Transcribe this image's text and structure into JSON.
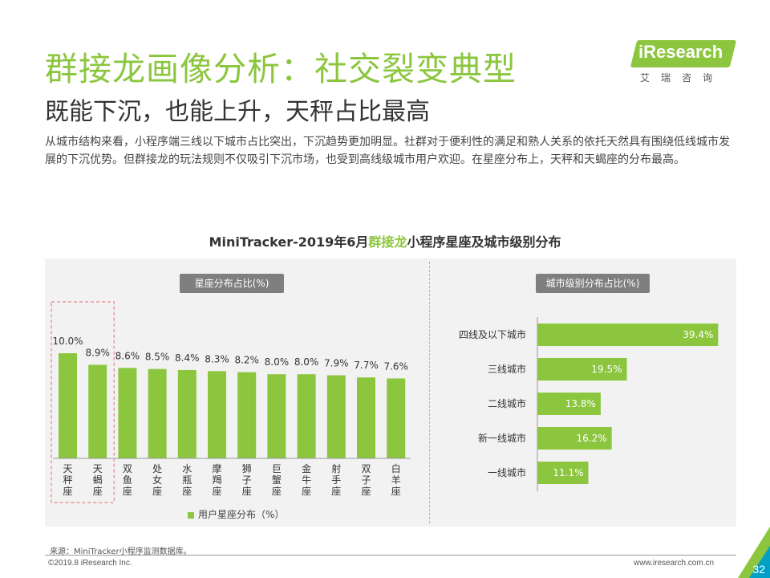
{
  "header": {
    "title": "群接龙画像分析：社交裂变典型",
    "subtitle": "既能下沉，也能上升，天秤占比最高",
    "intro": "从城市结构来看，小程序端三线以下城市占比突出，下沉趋势更加明显。社群对于便利性的满足和熟人关系的依托天然具有围绕低线城市发展的下沉优势。但群接龙的玩法规则不仅吸引下沉市场，也受到高线级城市用户欢迎。在星座分布上，天秤和天蝎座的分布最高。"
  },
  "logo": {
    "name": "iResearch",
    "sub": "艾瑞咨询"
  },
  "chart_header": {
    "prefix": "MiniTracker-2019年6月",
    "highlight": "群接龙",
    "suffix": "小程序星座及城市级别分布"
  },
  "colors": {
    "accent": "#8cc63f",
    "pill": "#7f7f7f",
    "panel": "#f2f2f2",
    "highlight_box": "#e8838a"
  },
  "chart_data": [
    {
      "type": "bar",
      "title": "星座分布占比(%)",
      "categories": [
        "天秤座",
        "天蝎座",
        "双鱼座",
        "处女座",
        "水瓶座",
        "摩羯座",
        "狮子座",
        "巨蟹座",
        "金牛座",
        "射手座",
        "双子座",
        "白羊座"
      ],
      "values": [
        10.0,
        8.9,
        8.6,
        8.5,
        8.4,
        8.3,
        8.2,
        8.0,
        8.0,
        7.9,
        7.7,
        7.6
      ],
      "value_labels": [
        "10.0%",
        "8.9%",
        "8.6%",
        "8.5%",
        "8.4%",
        "8.3%",
        "8.2%",
        "8.0%",
        "8.0%",
        "7.9%",
        "7.7%",
        "7.6%"
      ],
      "series": [
        {
          "name": "用户星座分布（%）",
          "values": [
            10.0,
            8.9,
            8.6,
            8.5,
            8.4,
            8.3,
            8.2,
            8.0,
            8.0,
            7.9,
            7.7,
            7.6
          ]
        }
      ],
      "highlighted": [
        "天秤座",
        "天蝎座"
      ],
      "legend_position": "bottom",
      "grid": false
    },
    {
      "type": "bar",
      "orientation": "horizontal",
      "title": "城市级别分布占比(%)",
      "categories": [
        "四线及以下城市",
        "三线城市",
        "二线城市",
        "新一线城市",
        "一线城市"
      ],
      "values": [
        39.4,
        19.5,
        13.8,
        16.2,
        11.1
      ],
      "value_labels": [
        "39.4%",
        "19.5%",
        "13.8%",
        "16.2%",
        "11.1%"
      ],
      "grid": false
    }
  ],
  "footer": {
    "source": "来源：MiniTracker小程序监测数据库。",
    "copyright": "©2019.8 iResearch Inc.",
    "website": "www.iresearch.com.cn",
    "page": "32"
  }
}
